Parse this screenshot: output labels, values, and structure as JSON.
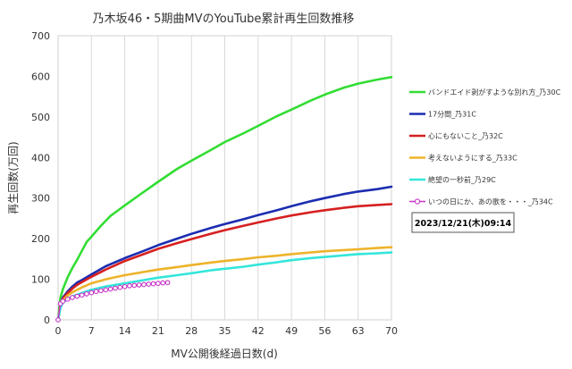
{
  "chart_data": {
    "type": "line",
    "title": "乃木坂46・5期曲MVのYouTube累計再生回数推移",
    "xlabel": "MV公開後経過日数(d)",
    "ylabel": "再生回数(万回)",
    "xlim": [
      0,
      70
    ],
    "ylim": [
      0,
      700
    ],
    "x_ticks": [
      0,
      7,
      14,
      21,
      28,
      35,
      42,
      49,
      56,
      63,
      70
    ],
    "y_ticks": [
      0,
      100,
      200,
      300,
      400,
      500,
      600,
      700
    ],
    "grid": "vertical",
    "legend_position": "right",
    "stamp": "2023/12/21(木)09:14",
    "series": [
      {
        "name": "バンドエイド剥がすような別れ方_乃30C",
        "color": "#33DD33",
        "marker": "none",
        "points": [
          [
            0,
            0
          ],
          [
            0.5,
            55
          ],
          [
            1,
            75
          ],
          [
            2,
            105
          ],
          [
            3,
            128
          ],
          [
            4,
            148
          ],
          [
            5,
            170
          ],
          [
            6,
            192
          ],
          [
            7,
            205
          ],
          [
            9,
            232
          ],
          [
            11,
            256
          ],
          [
            14,
            282
          ],
          [
            17,
            307
          ],
          [
            21,
            340
          ],
          [
            25,
            372
          ],
          [
            28,
            392
          ],
          [
            32,
            418
          ],
          [
            35,
            438
          ],
          [
            39,
            460
          ],
          [
            42,
            478
          ],
          [
            46,
            502
          ],
          [
            49,
            518
          ],
          [
            53,
            540
          ],
          [
            56,
            555
          ],
          [
            60,
            572
          ],
          [
            63,
            582
          ],
          [
            67,
            592
          ],
          [
            70,
            598
          ]
        ]
      },
      {
        "name": "17分間_乃31C",
        "color": "#1C2DB0",
        "marker": "none",
        "points": [
          [
            0,
            0
          ],
          [
            0.5,
            40
          ],
          [
            1,
            55
          ],
          [
            2,
            70
          ],
          [
            3,
            82
          ],
          [
            4,
            92
          ],
          [
            5,
            98
          ],
          [
            7,
            112
          ],
          [
            10,
            132
          ],
          [
            14,
            152
          ],
          [
            18,
            170
          ],
          [
            21,
            184
          ],
          [
            25,
            200
          ],
          [
            28,
            212
          ],
          [
            32,
            226
          ],
          [
            35,
            236
          ],
          [
            39,
            248
          ],
          [
            42,
            258
          ],
          [
            46,
            270
          ],
          [
            49,
            280
          ],
          [
            53,
            292
          ],
          [
            56,
            300
          ],
          [
            60,
            310
          ],
          [
            63,
            316
          ],
          [
            67,
            322
          ],
          [
            70,
            328
          ]
        ]
      },
      {
        "name": "心にもないこと_乃32C",
        "color": "#D62020",
        "marker": "none",
        "points": [
          [
            0,
            0
          ],
          [
            0.5,
            38
          ],
          [
            1,
            52
          ],
          [
            2,
            66
          ],
          [
            3,
            77
          ],
          [
            4,
            86
          ],
          [
            5,
            93
          ],
          [
            7,
            106
          ],
          [
            10,
            124
          ],
          [
            14,
            145
          ],
          [
            18,
            162
          ],
          [
            21,
            175
          ],
          [
            25,
            189
          ],
          [
            28,
            199
          ],
          [
            32,
            212
          ],
          [
            35,
            221
          ],
          [
            39,
            232
          ],
          [
            42,
            240
          ],
          [
            46,
            250
          ],
          [
            49,
            257
          ],
          [
            53,
            265
          ],
          [
            56,
            270
          ],
          [
            60,
            276
          ],
          [
            63,
            280
          ],
          [
            67,
            283
          ],
          [
            70,
            285
          ]
        ]
      },
      {
        "name": "考えないようにする_乃33C",
        "color": "#EDB32A",
        "marker": "none",
        "points": [
          [
            0,
            0
          ],
          [
            0.5,
            35
          ],
          [
            1,
            48
          ],
          [
            2,
            60
          ],
          [
            3,
            68
          ],
          [
            4,
            74
          ],
          [
            5,
            80
          ],
          [
            7,
            90
          ],
          [
            10,
            100
          ],
          [
            14,
            110
          ],
          [
            18,
            118
          ],
          [
            21,
            124
          ],
          [
            25,
            130
          ],
          [
            28,
            135
          ],
          [
            32,
            141
          ],
          [
            35,
            145
          ],
          [
            39,
            150
          ],
          [
            42,
            154
          ],
          [
            46,
            158
          ],
          [
            49,
            162
          ],
          [
            53,
            166
          ],
          [
            56,
            169
          ],
          [
            60,
            172
          ],
          [
            63,
            174
          ],
          [
            67,
            177
          ],
          [
            70,
            179
          ]
        ]
      },
      {
        "name": "絶望の一秒前_乃29C",
        "color": "#33E6DA",
        "marker": "none",
        "points": [
          [
            0,
            0
          ],
          [
            0.5,
            30
          ],
          [
            1,
            42
          ],
          [
            2,
            52
          ],
          [
            3,
            58
          ],
          [
            5,
            66
          ],
          [
            7,
            74
          ],
          [
            10,
            82
          ],
          [
            14,
            90
          ],
          [
            18,
            98
          ],
          [
            21,
            104
          ],
          [
            25,
            110
          ],
          [
            28,
            115
          ],
          [
            32,
            122
          ],
          [
            35,
            126
          ],
          [
            39,
            131
          ],
          [
            42,
            136
          ],
          [
            46,
            142
          ],
          [
            49,
            147
          ],
          [
            53,
            152
          ],
          [
            56,
            155
          ],
          [
            60,
            159
          ],
          [
            63,
            162
          ],
          [
            67,
            164
          ],
          [
            70,
            166
          ]
        ]
      },
      {
        "name": "いつの日にか、あの歌を・・・_乃34C",
        "color": "#C634C6",
        "marker": "circle",
        "points": [
          [
            0,
            0
          ],
          [
            0.5,
            40
          ],
          [
            1,
            46
          ],
          [
            2,
            51
          ],
          [
            3,
            55
          ],
          [
            4,
            58
          ],
          [
            5,
            61
          ],
          [
            6,
            64
          ],
          [
            7,
            67
          ],
          [
            8,
            70
          ],
          [
            9,
            72
          ],
          [
            10,
            74
          ],
          [
            11,
            76
          ],
          [
            12,
            78
          ],
          [
            13,
            80
          ],
          [
            14,
            82
          ],
          [
            15,
            84
          ],
          [
            16,
            85
          ],
          [
            17,
            86
          ],
          [
            18,
            87
          ],
          [
            19,
            88
          ],
          [
            20,
            89
          ],
          [
            21,
            90
          ],
          [
            22,
            91
          ],
          [
            23,
            92
          ]
        ]
      }
    ]
  }
}
